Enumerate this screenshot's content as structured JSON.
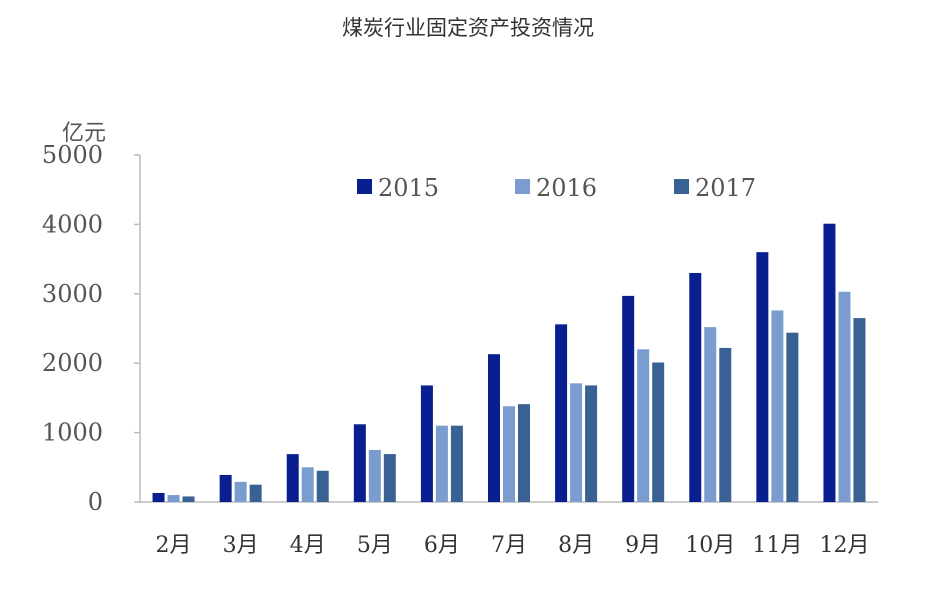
{
  "page": {
    "title": "煤炭行业固定资产投资情况"
  },
  "chart_data": {
    "type": "bar",
    "title": "煤炭行业固定资产投资情况",
    "ylabel": "亿元",
    "xlabel": "",
    "ylim": [
      0,
      5000
    ],
    "yticks": [
      "0",
      "1000",
      "2000",
      "3000",
      "4000",
      "5000"
    ],
    "categories": [
      "2月",
      "3月",
      "4月",
      "5月",
      "6月",
      "7月",
      "8月",
      "9月",
      "10月",
      "11月",
      "12月"
    ],
    "series": [
      {
        "name": "2015",
        "color": "#0a1f8f",
        "values": [
          130,
          390,
          690,
          1120,
          1680,
          2130,
          2560,
          2970,
          3300,
          3600,
          4010
        ]
      },
      {
        "name": "2016",
        "color": "#7a9ccf",
        "values": [
          100,
          290,
          500,
          750,
          1100,
          1380,
          1710,
          2200,
          2520,
          2760,
          3030
        ]
      },
      {
        "name": "2017",
        "color": "#3a6193",
        "values": [
          80,
          250,
          450,
          690,
          1100,
          1410,
          1680,
          2010,
          2220,
          2440,
          2650
        ]
      }
    ],
    "legend_position": "top-right",
    "grid": false
  }
}
